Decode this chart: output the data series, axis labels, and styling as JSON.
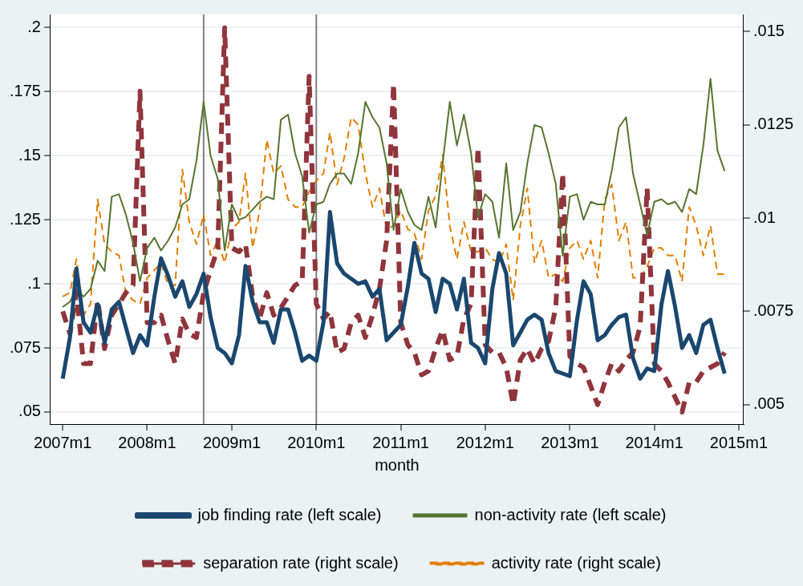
{
  "chart_data": {
    "type": "line",
    "xlabel": "month",
    "x": [
      "2007-01",
      "2007-02",
      "2007-03",
      "2007-04",
      "2007-05",
      "2007-06",
      "2007-07",
      "2007-08",
      "2007-09",
      "2007-10",
      "2007-11",
      "2007-12",
      "2008-01",
      "2008-02",
      "2008-03",
      "2008-04",
      "2008-05",
      "2008-06",
      "2008-07",
      "2008-08",
      "2008-09",
      "2008-10",
      "2008-11",
      "2008-12",
      "2009-01",
      "2009-02",
      "2009-03",
      "2009-04",
      "2009-05",
      "2009-06",
      "2009-07",
      "2009-08",
      "2009-09",
      "2009-10",
      "2009-11",
      "2009-12",
      "2010-01",
      "2010-02",
      "2010-03",
      "2010-04",
      "2010-05",
      "2010-06",
      "2010-07",
      "2010-08",
      "2010-09",
      "2010-10",
      "2010-11",
      "2010-12",
      "2011-01",
      "2011-02",
      "2011-03",
      "2011-04",
      "2011-05",
      "2011-06",
      "2011-07",
      "2011-08",
      "2011-09",
      "2011-10",
      "2011-11",
      "2011-12",
      "2012-01",
      "2012-02",
      "2012-03",
      "2012-04",
      "2012-05",
      "2012-06",
      "2012-07",
      "2012-08",
      "2012-09",
      "2012-10",
      "2012-11",
      "2012-12",
      "2013-01",
      "2013-02",
      "2013-03",
      "2013-04",
      "2013-05",
      "2013-06",
      "2013-07",
      "2013-08",
      "2013-09",
      "2013-10",
      "2013-11",
      "2013-12",
      "2014-01",
      "2014-02",
      "2014-03",
      "2014-04",
      "2014-05",
      "2014-06",
      "2014-07",
      "2014-08",
      "2014-09",
      "2014-10",
      "2014-11"
    ],
    "series": [
      {
        "name": "job finding rate (left scale)",
        "color": "#1a476f",
        "line_style": "solid",
        "axis": "y",
        "values": [
          0.063,
          0.079,
          0.106,
          0.085,
          0.081,
          0.092,
          0.077,
          0.09,
          0.093,
          0.083,
          0.073,
          0.08,
          0.076,
          0.095,
          0.11,
          0.103,
          0.095,
          0.101,
          0.091,
          0.096,
          0.104,
          0.087,
          0.075,
          0.073,
          0.069,
          0.08,
          0.107,
          0.093,
          0.085,
          0.085,
          0.077,
          0.09,
          0.09,
          0.081,
          0.07,
          0.072,
          0.07,
          0.085,
          0.128,
          0.108,
          0.104,
          0.102,
          0.1,
          0.101,
          0.095,
          0.098,
          0.078,
          0.081,
          0.084,
          0.099,
          0.116,
          0.104,
          0.102,
          0.089,
          0.102,
          0.1,
          0.09,
          0.102,
          0.077,
          0.075,
          0.069,
          0.098,
          0.112,
          0.104,
          0.076,
          0.081,
          0.086,
          0.088,
          0.086,
          0.073,
          0.066,
          0.065,
          0.064,
          0.086,
          0.101,
          0.096,
          0.078,
          0.08,
          0.084,
          0.087,
          0.088,
          0.071,
          0.063,
          0.067,
          0.066,
          0.092,
          0.105,
          0.091,
          0.075,
          0.08,
          0.073,
          0.084,
          0.086,
          0.075,
          0.065
        ]
      },
      {
        "name": "non-activity rate (left scale)",
        "color": "#55752f",
        "line_style": "solid",
        "axis": "y",
        "values": [
          0.091,
          0.093,
          0.098,
          0.095,
          0.098,
          0.109,
          0.105,
          0.134,
          0.135,
          0.127,
          0.116,
          0.101,
          0.114,
          0.118,
          0.113,
          0.117,
          0.122,
          0.131,
          0.133,
          0.148,
          0.171,
          0.15,
          0.141,
          0.113,
          0.131,
          0.125,
          0.126,
          0.129,
          0.132,
          0.134,
          0.133,
          0.164,
          0.166,
          0.151,
          0.142,
          0.12,
          0.131,
          0.132,
          0.139,
          0.143,
          0.143,
          0.139,
          0.151,
          0.171,
          0.165,
          0.161,
          0.147,
          0.121,
          0.137,
          0.128,
          0.123,
          0.121,
          0.134,
          0.122,
          0.147,
          0.171,
          0.154,
          0.166,
          0.151,
          0.126,
          0.135,
          0.132,
          0.118,
          0.147,
          0.121,
          0.128,
          0.147,
          0.162,
          0.161,
          0.151,
          0.139,
          0.111,
          0.134,
          0.135,
          0.125,
          0.132,
          0.131,
          0.131,
          0.144,
          0.161,
          0.165,
          0.143,
          0.131,
          0.119,
          0.132,
          0.133,
          0.131,
          0.132,
          0.128,
          0.137,
          0.135,
          0.154,
          0.18,
          0.152,
          0.144
        ]
      },
      {
        "name": "separation rate (right scale)",
        "color": "#90353b",
        "line_style": "dashed",
        "axis": "y2",
        "values": [
          0.0075,
          0.0069,
          0.008,
          0.0061,
          0.0061,
          0.0078,
          0.0065,
          0.0074,
          0.0077,
          0.008,
          0.0082,
          0.0134,
          0.0072,
          0.0072,
          0.0074,
          0.0067,
          0.0061,
          0.0073,
          0.0069,
          0.0068,
          0.008,
          0.0086,
          0.0092,
          0.0151,
          0.0092,
          0.0091,
          0.0093,
          0.0079,
          0.0073,
          0.008,
          0.0074,
          0.0076,
          0.0079,
          0.0082,
          0.0083,
          0.0138,
          0.0077,
          0.0073,
          0.0075,
          0.0064,
          0.0065,
          0.0072,
          0.0074,
          0.0068,
          0.0074,
          0.0081,
          0.0094,
          0.0136,
          0.0072,
          0.0066,
          0.0064,
          0.0058,
          0.0059,
          0.0065,
          0.007,
          0.0062,
          0.0063,
          0.0073,
          0.0077,
          0.0119,
          0.0066,
          0.0064,
          0.0064,
          0.006,
          0.005,
          0.0062,
          0.0065,
          0.0061,
          0.0065,
          0.0067,
          0.0076,
          0.0112,
          0.0063,
          0.0061,
          0.006,
          0.0055,
          0.005,
          0.0056,
          0.0061,
          0.0059,
          0.0062,
          0.0064,
          0.0071,
          0.0108,
          0.0061,
          0.0059,
          0.0056,
          0.0052,
          0.0048,
          0.0056,
          0.0056,
          0.0059,
          0.006,
          0.0061,
          0.0064
        ]
      },
      {
        "name": "activity rate (right scale)",
        "color": "#e37e00",
        "line_style": "dashed",
        "axis": "y2",
        "values": [
          0.0079,
          0.008,
          0.0089,
          0.0074,
          0.0077,
          0.0105,
          0.0093,
          0.0091,
          0.009,
          0.008,
          0.0078,
          0.0077,
          0.0084,
          0.0086,
          0.0088,
          0.0082,
          0.0082,
          0.0113,
          0.0099,
          0.0093,
          0.0101,
          0.009,
          0.0094,
          0.0088,
          0.0097,
          0.0099,
          0.0112,
          0.0092,
          0.0102,
          0.0121,
          0.0112,
          0.0114,
          0.0105,
          0.0103,
          0.0103,
          0.0107,
          0.011,
          0.0112,
          0.0123,
          0.0109,
          0.0116,
          0.0127,
          0.0125,
          0.0112,
          0.0103,
          0.0108,
          0.0097,
          0.0098,
          0.0102,
          0.0097,
          0.0096,
          0.0089,
          0.0102,
          0.0106,
          0.0117,
          0.0098,
          0.0089,
          0.0099,
          0.0091,
          0.0091,
          0.0092,
          0.0089,
          0.0088,
          0.0093,
          0.0078,
          0.0098,
          0.0108,
          0.0088,
          0.0094,
          0.0084,
          0.0085,
          0.0083,
          0.0092,
          0.0094,
          0.0089,
          0.0094,
          0.0084,
          0.0105,
          0.0109,
          0.0094,
          0.0099,
          0.0084,
          0.0084,
          0.0087,
          0.0092,
          0.0092,
          0.009,
          0.009,
          0.0083,
          0.0103,
          0.0098,
          0.009,
          0.0098,
          0.0085,
          0.0085
        ]
      }
    ],
    "xlim": [
      "2006-11-09",
      "2015-01-22"
    ],
    "xticks": [
      {
        "value": "2007-01",
        "label": "2007m1"
      },
      {
        "value": "2008-01",
        "label": "2008m1"
      },
      {
        "value": "2009-01",
        "label": "2009m1"
      },
      {
        "value": "2010-01",
        "label": "2010m1"
      },
      {
        "value": "2011-01",
        "label": "2011m1"
      },
      {
        "value": "2012-01",
        "label": "2012m1"
      },
      {
        "value": "2013-01",
        "label": "2013m1"
      },
      {
        "value": "2014-01",
        "label": "2014m1"
      },
      {
        "value": "2015-01",
        "label": "2015m1"
      }
    ],
    "ylim": [
      0.0453,
      0.2051
    ],
    "yticks": [
      {
        "value": 0.05,
        "label": ".05"
      },
      {
        "value": 0.075,
        "label": ".075"
      },
      {
        "value": 0.1,
        "label": ".1"
      },
      {
        "value": 0.125,
        "label": ".125"
      },
      {
        "value": 0.15,
        "label": ".15"
      },
      {
        "value": 0.175,
        "label": ".175"
      },
      {
        "value": 0.2,
        "label": ".2"
      }
    ],
    "y2lim": [
      0.00448,
      0.01546
    ],
    "y2ticks": [
      {
        "value": 0.005,
        "label": ".005"
      },
      {
        "value": 0.0075,
        "label": ".0075"
      },
      {
        "value": 0.01,
        "label": ".01"
      },
      {
        "value": 0.0125,
        "label": ".0125"
      },
      {
        "value": 0.015,
        "label": ".015"
      }
    ],
    "ref_lines": [
      {
        "axis": "x",
        "value": "2008-09",
        "color": "#808080"
      },
      {
        "axis": "x",
        "value": "2010-01",
        "color": "#808080"
      }
    ],
    "grid": "y",
    "legend": "bottom"
  }
}
